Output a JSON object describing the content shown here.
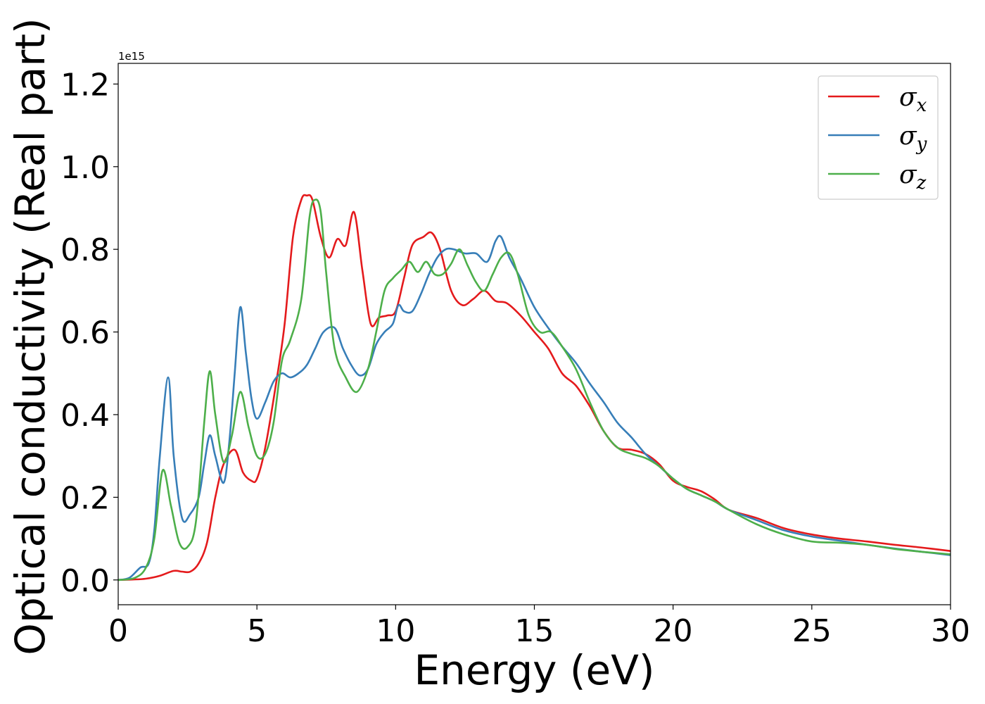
{
  "chart_data": {
    "type": "line",
    "title": "",
    "xlabel": "Energy (eV)",
    "ylabel": "Optical conductivity (Real part)",
    "y_offset_text": "1e15",
    "xlim": [
      0,
      30
    ],
    "ylim": [
      -0.06,
      1.25
    ],
    "x_ticks": [
      0,
      5,
      10,
      15,
      20,
      25,
      30
    ],
    "x_tick_labels": [
      "0",
      "5",
      "10",
      "15",
      "20",
      "25",
      "30"
    ],
    "y_ticks": [
      0.0,
      0.2,
      0.4,
      0.6,
      0.8,
      1.0,
      1.2
    ],
    "y_tick_labels": [
      "0.0",
      "0.2",
      "0.4",
      "0.6",
      "0.8",
      "1.0",
      "1.2"
    ],
    "grid": false,
    "legend_position": "top-right",
    "series": [
      {
        "name": "σx",
        "legend_base": "σ",
        "legend_sub": "x",
        "color": "#e41a1c",
        "x": [
          0,
          0.5,
          1.0,
          1.5,
          2.0,
          2.3,
          2.6,
          2.9,
          3.2,
          3.5,
          3.8,
          4.2,
          4.5,
          4.8,
          5.0,
          5.3,
          5.7,
          6.0,
          6.3,
          6.6,
          6.8,
          7.0,
          7.3,
          7.6,
          7.9,
          8.2,
          8.5,
          8.8,
          9.1,
          9.4,
          9.7,
          10.0,
          10.3,
          10.6,
          11.0,
          11.3,
          11.6,
          12.0,
          12.4,
          12.8,
          13.2,
          13.6,
          14.0,
          14.5,
          15.0,
          15.5,
          16.0,
          16.5,
          17.0,
          17.5,
          18.0,
          18.5,
          19.0,
          19.5,
          20.0,
          20.5,
          21.0,
          21.5,
          22.0,
          23.0,
          24.0,
          25.0,
          26.0,
          27.0,
          28.0,
          29.0,
          30.0
        ],
        "values": [
          0.0,
          0.001,
          0.003,
          0.01,
          0.022,
          0.02,
          0.02,
          0.04,
          0.09,
          0.2,
          0.28,
          0.315,
          0.26,
          0.24,
          0.245,
          0.32,
          0.48,
          0.62,
          0.83,
          0.92,
          0.93,
          0.92,
          0.83,
          0.78,
          0.825,
          0.81,
          0.89,
          0.75,
          0.62,
          0.635,
          0.64,
          0.65,
          0.73,
          0.81,
          0.83,
          0.84,
          0.8,
          0.7,
          0.665,
          0.68,
          0.7,
          0.675,
          0.67,
          0.64,
          0.6,
          0.56,
          0.5,
          0.47,
          0.42,
          0.36,
          0.32,
          0.315,
          0.305,
          0.28,
          0.24,
          0.225,
          0.215,
          0.195,
          0.17,
          0.15,
          0.125,
          0.11,
          0.1,
          0.093,
          0.085,
          0.078,
          0.07
        ]
      },
      {
        "name": "σy",
        "legend_base": "σ",
        "legend_sub": "y",
        "color": "#377eb8",
        "x": [
          0,
          0.4,
          0.8,
          1.1,
          1.3,
          1.5,
          1.8,
          2.0,
          2.3,
          2.6,
          2.9,
          3.1,
          3.3,
          3.5,
          3.8,
          4.0,
          4.2,
          4.4,
          4.6,
          4.8,
          5.0,
          5.3,
          5.6,
          5.9,
          6.2,
          6.5,
          6.8,
          7.1,
          7.4,
          7.8,
          8.1,
          8.4,
          8.7,
          9.0,
          9.3,
          9.6,
          9.9,
          10.1,
          10.3,
          10.6,
          10.9,
          11.2,
          11.5,
          11.8,
          12.1,
          12.5,
          12.9,
          13.3,
          13.6,
          13.8,
          14.1,
          14.5,
          15.0,
          15.5,
          16.0,
          16.5,
          17.0,
          17.5,
          18.0,
          18.5,
          19.0,
          19.5,
          20.0,
          20.5,
          21.0,
          21.5,
          22.0,
          23.0,
          24.0,
          25.0,
          26.0,
          27.0,
          28.0,
          29.0,
          30.0
        ],
        "values": [
          0.0,
          0.005,
          0.03,
          0.04,
          0.12,
          0.3,
          0.49,
          0.3,
          0.15,
          0.16,
          0.2,
          0.28,
          0.35,
          0.3,
          0.235,
          0.33,
          0.5,
          0.66,
          0.55,
          0.44,
          0.39,
          0.43,
          0.48,
          0.5,
          0.49,
          0.5,
          0.52,
          0.56,
          0.6,
          0.61,
          0.56,
          0.52,
          0.495,
          0.51,
          0.57,
          0.6,
          0.62,
          0.665,
          0.65,
          0.65,
          0.69,
          0.74,
          0.78,
          0.8,
          0.8,
          0.79,
          0.79,
          0.77,
          0.82,
          0.83,
          0.78,
          0.73,
          0.66,
          0.61,
          0.565,
          0.525,
          0.475,
          0.43,
          0.38,
          0.345,
          0.305,
          0.275,
          0.245,
          0.22,
          0.205,
          0.19,
          0.17,
          0.145,
          0.12,
          0.105,
          0.095,
          0.085,
          0.076,
          0.068,
          0.06
        ]
      },
      {
        "name": "σz",
        "legend_base": "σ",
        "legend_sub": "z",
        "color": "#4daf4a",
        "x": [
          0,
          0.6,
          1.0,
          1.3,
          1.6,
          1.9,
          2.2,
          2.5,
          2.8,
          3.1,
          3.3,
          3.5,
          3.8,
          4.1,
          4.4,
          4.7,
          5.0,
          5.3,
          5.6,
          5.9,
          6.2,
          6.6,
          6.9,
          7.1,
          7.3,
          7.5,
          7.8,
          8.2,
          8.6,
          9.0,
          9.3,
          9.6,
          9.9,
          10.2,
          10.5,
          10.8,
          11.1,
          11.4,
          11.7,
          12.0,
          12.3,
          12.6,
          12.9,
          13.2,
          13.5,
          13.8,
          14.1,
          14.4,
          14.8,
          15.2,
          15.6,
          16.0,
          16.5,
          17.0,
          17.5,
          18.0,
          18.5,
          19.0,
          19.5,
          20.0,
          20.5,
          21.0,
          21.5,
          22.0,
          23.0,
          24.0,
          25.0,
          26.0,
          27.0,
          28.0,
          29.0,
          30.0
        ],
        "values": [
          0.0,
          0.005,
          0.03,
          0.1,
          0.265,
          0.18,
          0.09,
          0.08,
          0.14,
          0.38,
          0.505,
          0.4,
          0.285,
          0.35,
          0.455,
          0.37,
          0.3,
          0.305,
          0.38,
          0.53,
          0.58,
          0.68,
          0.88,
          0.92,
          0.89,
          0.74,
          0.56,
          0.49,
          0.455,
          0.51,
          0.6,
          0.7,
          0.73,
          0.75,
          0.77,
          0.745,
          0.77,
          0.74,
          0.74,
          0.765,
          0.8,
          0.76,
          0.72,
          0.7,
          0.74,
          0.78,
          0.79,
          0.74,
          0.64,
          0.6,
          0.6,
          0.565,
          0.51,
          0.43,
          0.36,
          0.32,
          0.305,
          0.295,
          0.275,
          0.245,
          0.22,
          0.205,
          0.19,
          0.17,
          0.135,
          0.11,
          0.093,
          0.09,
          0.085,
          0.075,
          0.068,
          0.062
        ]
      }
    ]
  }
}
